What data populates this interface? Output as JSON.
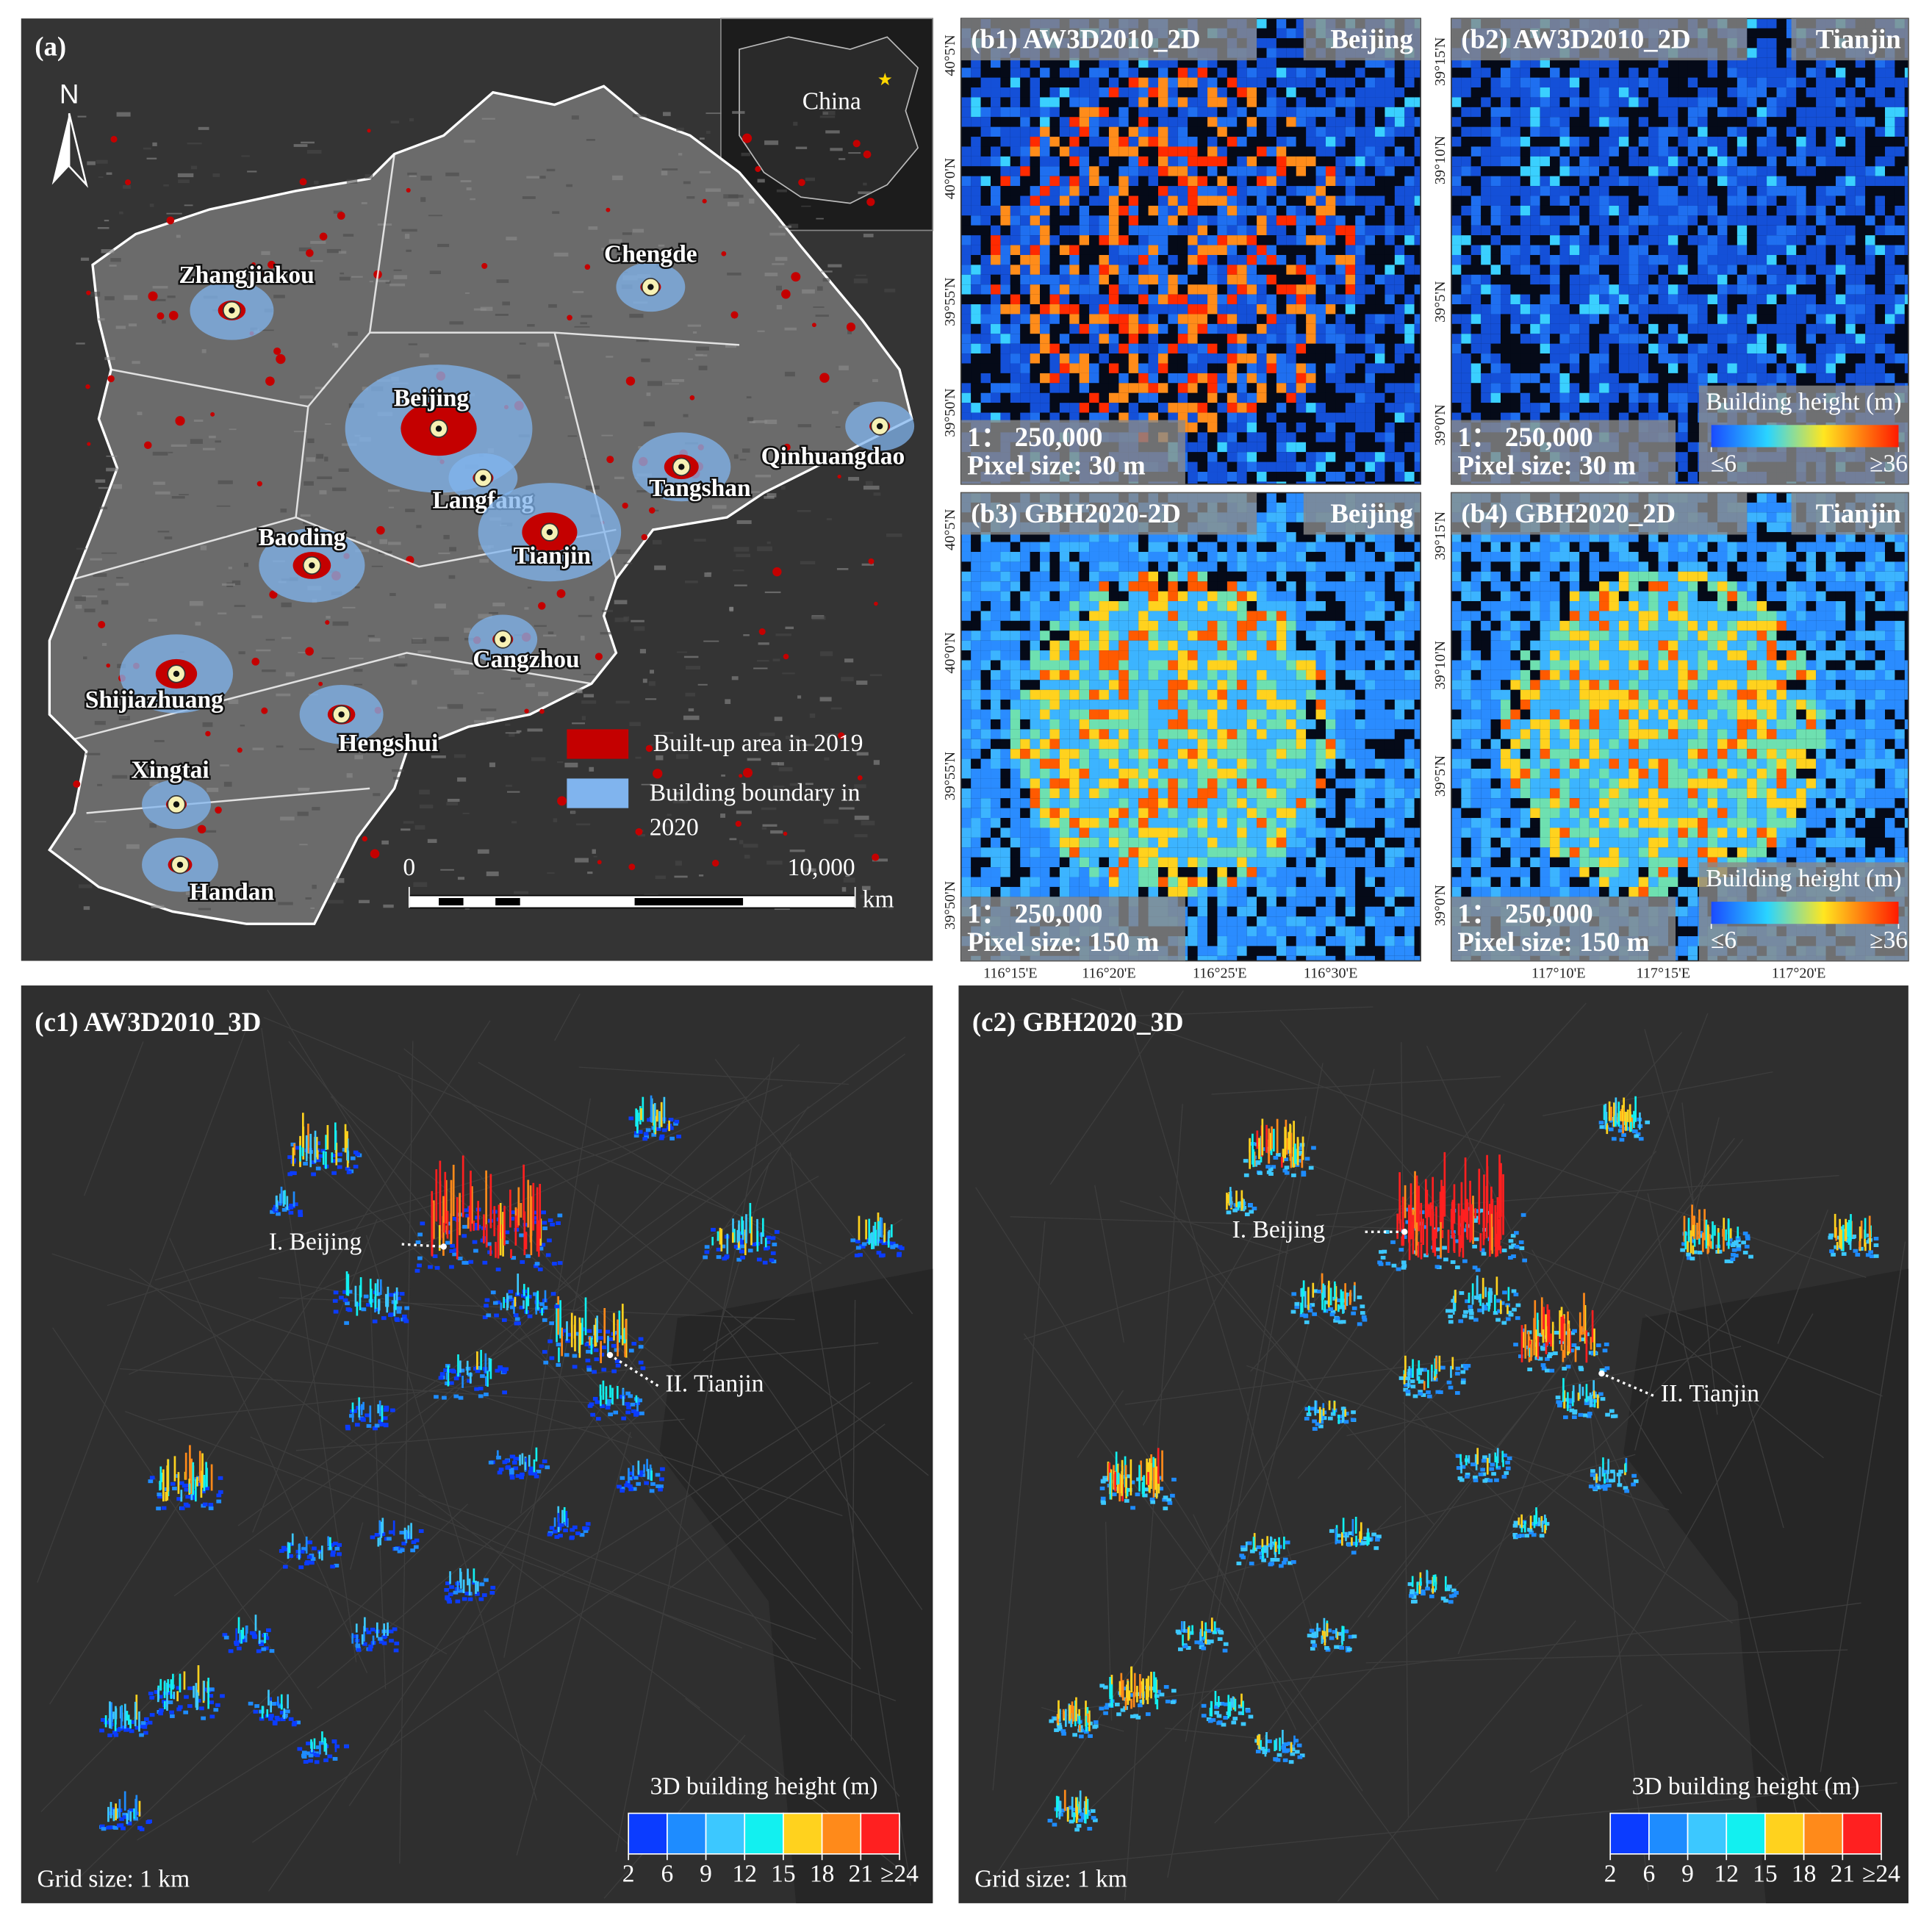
{
  "panel_a": {
    "label": "(a)",
    "north": "N",
    "inset_label": "China",
    "cities": [
      "Zhangjiakou",
      "Chengde",
      "Beijing",
      "Langfang",
      "Tangshan",
      "Qinhuangdao",
      "Baoding",
      "Tianjin",
      "Cangzhou",
      "Shijiazhuang",
      "Hengshui",
      "Xingtai",
      "Handan"
    ],
    "legend": [
      {
        "label": "Built-up area in 2019",
        "color": "#c40000"
      },
      {
        "label": "Building boundary in 2020",
        "color": "#80b4ee"
      }
    ],
    "scale_bar": {
      "ticks": [
        0,
        {
          "value": 10000,
          "label": "10,000"
        }
      ],
      "unit": "km"
    }
  },
  "panels_b": [
    {
      "title": "(b1) AW3D2010_2D",
      "city": "Beijing",
      "scale": "1： 250,000",
      "pixel_size": "Pixel size: 30 m",
      "lat_labels": [
        "40°5'N",
        "40°0'N",
        "39°55'N",
        "39°50'N"
      ]
    },
    {
      "title": "(b2) AW3D2010_2D",
      "city": "Tianjin",
      "scale": "1： 250,000",
      "pixel_size": "Pixel size: 30 m",
      "lat_labels": [
        "39°15'N",
        "39°10'N",
        "39°5'N",
        "39°0'N"
      ]
    },
    {
      "title": "(b3) GBH2020-2D",
      "city": "Beijing",
      "scale": "1： 250,000",
      "pixel_size": "Pixel size: 150 m",
      "lat_labels": [
        "40°5'N",
        "40°0'N",
        "39°55'N",
        "39°50'N"
      ],
      "lon_labels": [
        "116°15'E",
        "116°20'E",
        "116°25'E",
        "116°30'E"
      ]
    },
    {
      "title": "(b4) GBH2020_2D",
      "city": "Tianjin",
      "scale": "1： 250,000",
      "pixel_size": "Pixel size: 150 m",
      "lat_labels": [
        "39°15'N",
        "39°10'N",
        "39°5'N",
        "39°0'N"
      ],
      "lon_labels": [
        "117°10'E",
        "117°15'E",
        "117°20'E"
      ]
    }
  ],
  "b_legend": {
    "title": "Building height (m)",
    "ticks": [
      {
        "value": 6,
        "label": "≤6"
      },
      {
        "value": 36,
        "label": "≥36"
      }
    ]
  },
  "panels_c": [
    {
      "title": "(c1) AW3D2010_3D",
      "annotations": [
        "I. Beijing",
        "II. Tianjin"
      ],
      "grid_size": "Grid size: 1 km"
    },
    {
      "title": "(c2) GBH2020_3D",
      "annotations": [
        "I. Beijing",
        "II. Tianjin"
      ],
      "grid_size": "Grid size: 1 km"
    }
  ],
  "c_legend": {
    "title": "3D building height (m)",
    "ticks": [
      2,
      6,
      9,
      12,
      15,
      18,
      21,
      {
        "value": 24,
        "label": "≥24"
      }
    ],
    "colors": [
      "#0b3cff",
      "#1e8cff",
      "#3cc8ff",
      "#12f0f0",
      "#ffd21e",
      "#ff8a1a",
      "#ff2020"
    ]
  }
}
